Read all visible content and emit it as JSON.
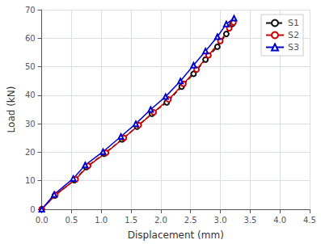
{
  "chart_data": {
    "type": "line",
    "xlabel": "Displacement (mm)",
    "ylabel": "Load (kN)",
    "xlim": [
      0,
      4.5
    ],
    "ylim": [
      0,
      70
    ],
    "xticks": [
      {
        "value": 0,
        "label": "0.0"
      },
      0.5,
      {
        "value": 1,
        "label": "1.0"
      },
      1.5,
      {
        "value": 2,
        "label": "2.0"
      },
      2.5,
      {
        "value": 3,
        "label": "3.0"
      },
      3.5,
      {
        "value": 4,
        "label": "4.0"
      },
      4.5
    ],
    "yticks": [
      0,
      10,
      20,
      30,
      40,
      50,
      60,
      70
    ],
    "grid": true,
    "legend": "upper right",
    "series": [
      {
        "name": "S1",
        "color": "#111111",
        "marker": "circle",
        "line_style": "dashed",
        "x": [
          0.0,
          0.22,
          0.55,
          0.75,
          1.05,
          1.35,
          1.6,
          1.85,
          2.1,
          2.35,
          2.55,
          2.75,
          2.95,
          3.1,
          3.2
        ],
        "values": [
          0.0,
          4.8,
          10.2,
          14.8,
          19.5,
          24.5,
          29.0,
          33.5,
          37.5,
          43.0,
          47.5,
          52.5,
          57.0,
          61.5,
          65.0
        ]
      },
      {
        "name": "S2",
        "color": "#cc0000",
        "marker": "circle",
        "line_style": "solid",
        "x": [
          0.0,
          0.23,
          0.57,
          0.78,
          1.08,
          1.38,
          1.63,
          1.88,
          2.13,
          2.38,
          2.6,
          2.8,
          3.0,
          3.15,
          3.22
        ],
        "values": [
          0.0,
          5.0,
          10.5,
          15.2,
          19.8,
          25.0,
          29.5,
          34.0,
          38.5,
          44.0,
          49.0,
          54.0,
          59.0,
          63.5,
          65.5
        ]
      },
      {
        "name": "S3",
        "color": "#0000cc",
        "marker": "triangle",
        "line_style": "solid",
        "x": [
          0.0,
          0.21,
          0.53,
          0.73,
          1.03,
          1.33,
          1.58,
          1.83,
          2.08,
          2.33,
          2.55,
          2.75,
          2.95,
          3.1,
          3.23
        ],
        "values": [
          0.0,
          5.2,
          10.8,
          15.5,
          20.2,
          25.5,
          30.0,
          35.0,
          39.5,
          45.0,
          50.5,
          55.5,
          60.5,
          65.0,
          67.0
        ]
      }
    ]
  }
}
